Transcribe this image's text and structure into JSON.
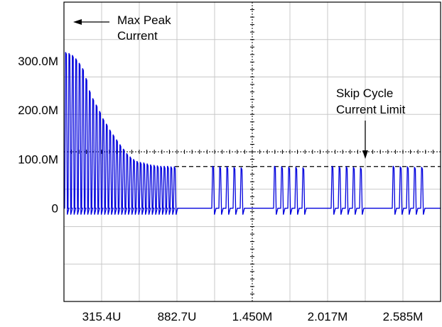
{
  "chart_data": {
    "type": "line",
    "x_tick_labels": [
      "315.4U",
      "882.7U",
      "1.450M",
      "2.017M",
      "2.585M"
    ],
    "y_tick_labels": [
      "300.0M",
      "200.0M",
      "100.0M",
      "0"
    ],
    "y_tick_values": [
      300,
      200,
      100,
      0
    ],
    "ylim": [
      -190,
      420
    ],
    "grid": true,
    "series_color": "#0000dd",
    "reference_lines": [
      {
        "type": "dashed",
        "y": 85
      }
    ],
    "annotations": [
      {
        "lines": [
          "Max Peak",
          "Current"
        ]
      },
      {
        "lines": [
          "Skip Cycle",
          "Current Limit"
        ]
      }
    ],
    "startup_peaks": [
      318,
      316,
      312,
      305,
      296,
      285,
      265,
      240,
      224,
      211,
      198,
      183,
      172,
      160,
      150,
      140,
      130,
      121,
      112,
      105,
      100,
      96,
      94,
      93,
      91,
      89,
      88,
      87,
      86,
      86,
      86,
      85,
      85
    ],
    "bursts": [
      {
        "peaks": [
          86,
          85,
          85,
          84,
          83
        ]
      },
      {
        "peaks": [
          86,
          85,
          84,
          84,
          83
        ]
      },
      {
        "peaks": [
          86,
          85,
          85,
          84,
          83
        ]
      },
      {
        "peaks": [
          86,
          85,
          85,
          84,
          84
        ]
      }
    ]
  }
}
